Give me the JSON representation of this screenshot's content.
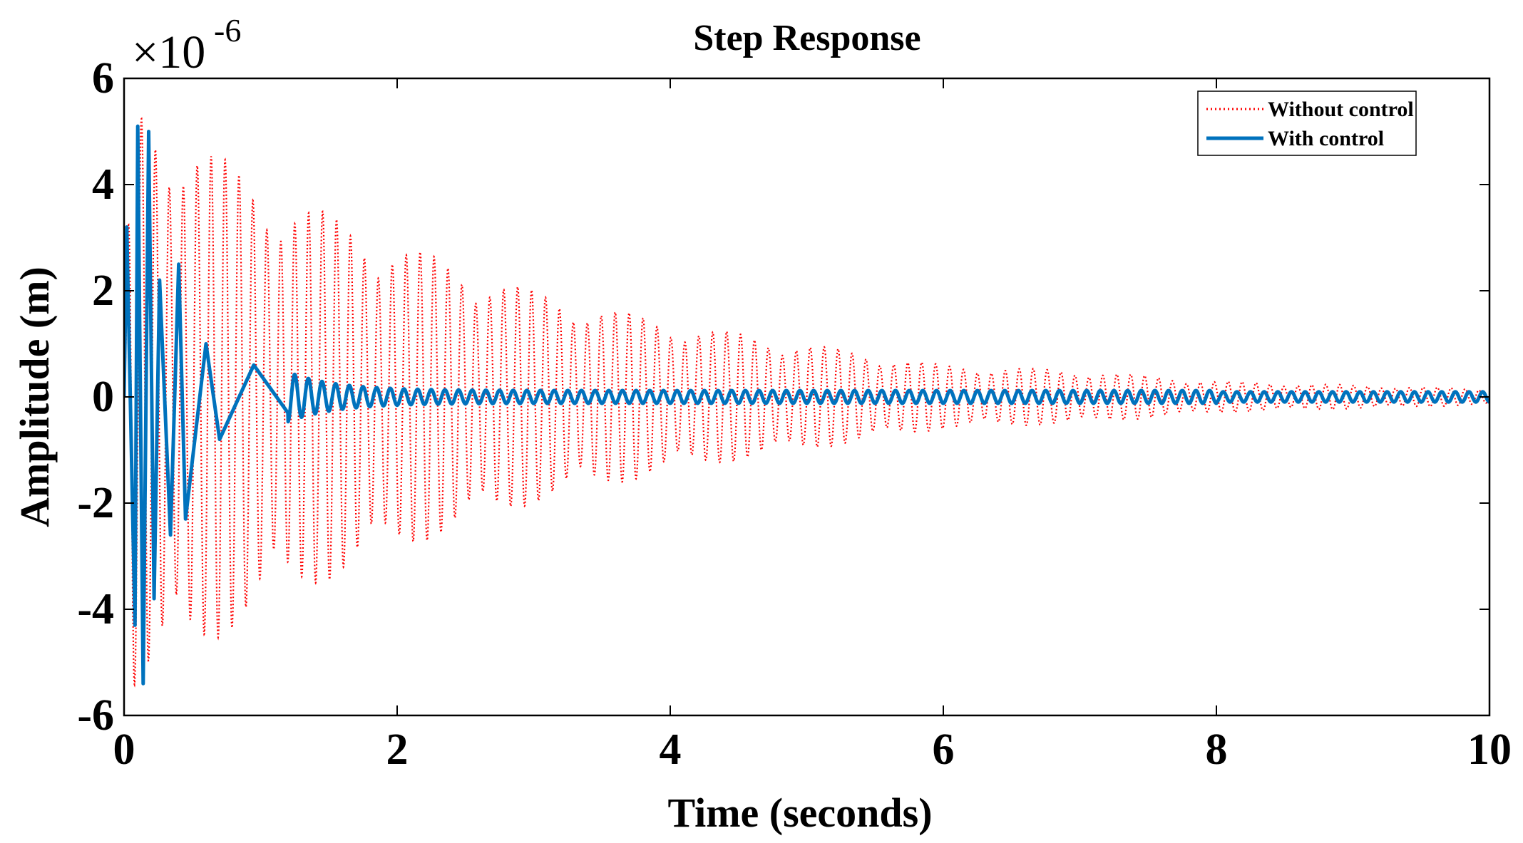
{
  "chart_data": {
    "type": "line",
    "title": "Step Response",
    "xlabel": "Time (seconds)",
    "ylabel": "Amplitude (m)",
    "exponent_label": "×10",
    "exponent_power": "-6",
    "xlim": [
      0,
      10
    ],
    "ylim": [
      -6,
      6
    ],
    "xticks": [
      0,
      2,
      4,
      6,
      8,
      10
    ],
    "xtick_labels": [
      "0",
      "2",
      "4",
      "6",
      "8",
      "10"
    ],
    "yticks": [
      -6,
      -4,
      -2,
      0,
      2,
      4,
      6
    ],
    "ytick_labels": [
      "-6",
      "-4",
      "-2",
      "0",
      "2",
      "4",
      "6"
    ],
    "grid": false,
    "legend_position": "top-right",
    "series": [
      {
        "name": "Without control",
        "color": "#ff0000",
        "style": "dotted",
        "model": {
          "description": "decaying oscillation, units of 1e-6 m",
          "peak_envelope": [
            {
              "t": 0.1,
              "amp": 5.5
            },
            {
              "t": 0.5,
              "amp": 4.9
            },
            {
              "t": 1.0,
              "amp": 4.0
            },
            {
              "t": 2.0,
              "amp": 2.9
            },
            {
              "t": 3.0,
              "amp": 2.0
            },
            {
              "t": 4.0,
              "amp": 1.4
            },
            {
              "t": 5.0,
              "amp": 1.0
            },
            {
              "t": 6.0,
              "amp": 0.6
            },
            {
              "t": 7.0,
              "amp": 0.5
            },
            {
              "t": 8.0,
              "amp": 0.3
            },
            {
              "t": 10.0,
              "amp": 0.15
            }
          ],
          "oscillation_frequency_hz": 9.8,
          "beat_frequency_hz": 1.35
        }
      },
      {
        "name": "With control",
        "color": "#0072bd",
        "style": "solid",
        "model": {
          "description": "fast-decaying oscillation settling to small ripple, units of 1e-6 m",
          "peaks": [
            {
              "t": 0.02,
              "y": 3.2
            },
            {
              "t": 0.08,
              "y": -4.3
            },
            {
              "t": 0.1,
              "y": 5.1
            },
            {
              "t": 0.14,
              "y": -5.4
            },
            {
              "t": 0.18,
              "y": 5.0
            },
            {
              "t": 0.22,
              "y": -3.8
            },
            {
              "t": 0.26,
              "y": 2.2
            },
            {
              "t": 0.34,
              "y": -2.6
            },
            {
              "t": 0.4,
              "y": 2.5
            },
            {
              "t": 0.45,
              "y": -2.3
            },
            {
              "t": 0.6,
              "y": 1.0
            },
            {
              "t": 0.7,
              "y": -0.8
            },
            {
              "t": 0.95,
              "y": 0.6
            },
            {
              "t": 1.2,
              "y": -0.3
            }
          ],
          "steady_ripple_amp": 0.12,
          "steady_ripple_frequency_hz": 10
        }
      }
    ]
  }
}
